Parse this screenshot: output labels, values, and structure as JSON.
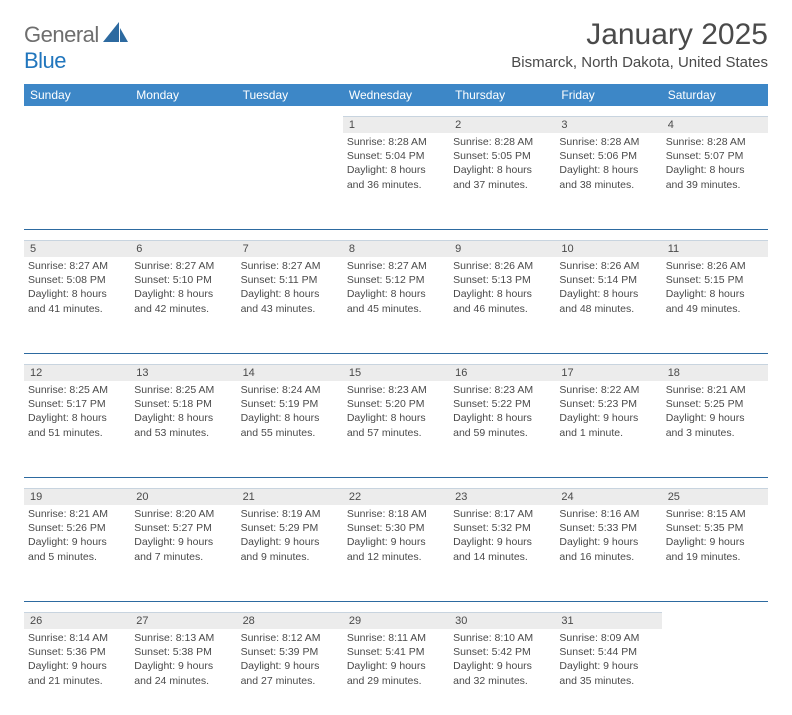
{
  "logo": {
    "text1": "General",
    "text2": "Blue"
  },
  "title": "January 2025",
  "location": "Bismarck, North Dakota, United States",
  "colors": {
    "header_bg": "#3d87c7",
    "header_text": "#ffffff",
    "daynum_bg": "#ececec",
    "rule": "#2d6aa0",
    "body_text": "#4a4a4a",
    "logo_gray": "#6e6e6e",
    "logo_blue": "#2176bd"
  },
  "day_names": [
    "Sunday",
    "Monday",
    "Tuesday",
    "Wednesday",
    "Thursday",
    "Friday",
    "Saturday"
  ],
  "weeks": [
    [
      {
        "n": "",
        "sr": "",
        "ss": "",
        "dl": ""
      },
      {
        "n": "",
        "sr": "",
        "ss": "",
        "dl": ""
      },
      {
        "n": "",
        "sr": "",
        "ss": "",
        "dl": ""
      },
      {
        "n": "1",
        "sr": "Sunrise: 8:28 AM",
        "ss": "Sunset: 5:04 PM",
        "dl": "Daylight: 8 hours and 36 minutes."
      },
      {
        "n": "2",
        "sr": "Sunrise: 8:28 AM",
        "ss": "Sunset: 5:05 PM",
        "dl": "Daylight: 8 hours and 37 minutes."
      },
      {
        "n": "3",
        "sr": "Sunrise: 8:28 AM",
        "ss": "Sunset: 5:06 PM",
        "dl": "Daylight: 8 hours and 38 minutes."
      },
      {
        "n": "4",
        "sr": "Sunrise: 8:28 AM",
        "ss": "Sunset: 5:07 PM",
        "dl": "Daylight: 8 hours and 39 minutes."
      }
    ],
    [
      {
        "n": "5",
        "sr": "Sunrise: 8:27 AM",
        "ss": "Sunset: 5:08 PM",
        "dl": "Daylight: 8 hours and 41 minutes."
      },
      {
        "n": "6",
        "sr": "Sunrise: 8:27 AM",
        "ss": "Sunset: 5:10 PM",
        "dl": "Daylight: 8 hours and 42 minutes."
      },
      {
        "n": "7",
        "sr": "Sunrise: 8:27 AM",
        "ss": "Sunset: 5:11 PM",
        "dl": "Daylight: 8 hours and 43 minutes."
      },
      {
        "n": "8",
        "sr": "Sunrise: 8:27 AM",
        "ss": "Sunset: 5:12 PM",
        "dl": "Daylight: 8 hours and 45 minutes."
      },
      {
        "n": "9",
        "sr": "Sunrise: 8:26 AM",
        "ss": "Sunset: 5:13 PM",
        "dl": "Daylight: 8 hours and 46 minutes."
      },
      {
        "n": "10",
        "sr": "Sunrise: 8:26 AM",
        "ss": "Sunset: 5:14 PM",
        "dl": "Daylight: 8 hours and 48 minutes."
      },
      {
        "n": "11",
        "sr": "Sunrise: 8:26 AM",
        "ss": "Sunset: 5:15 PM",
        "dl": "Daylight: 8 hours and 49 minutes."
      }
    ],
    [
      {
        "n": "12",
        "sr": "Sunrise: 8:25 AM",
        "ss": "Sunset: 5:17 PM",
        "dl": "Daylight: 8 hours and 51 minutes."
      },
      {
        "n": "13",
        "sr": "Sunrise: 8:25 AM",
        "ss": "Sunset: 5:18 PM",
        "dl": "Daylight: 8 hours and 53 minutes."
      },
      {
        "n": "14",
        "sr": "Sunrise: 8:24 AM",
        "ss": "Sunset: 5:19 PM",
        "dl": "Daylight: 8 hours and 55 minutes."
      },
      {
        "n": "15",
        "sr": "Sunrise: 8:23 AM",
        "ss": "Sunset: 5:20 PM",
        "dl": "Daylight: 8 hours and 57 minutes."
      },
      {
        "n": "16",
        "sr": "Sunrise: 8:23 AM",
        "ss": "Sunset: 5:22 PM",
        "dl": "Daylight: 8 hours and 59 minutes."
      },
      {
        "n": "17",
        "sr": "Sunrise: 8:22 AM",
        "ss": "Sunset: 5:23 PM",
        "dl": "Daylight: 9 hours and 1 minute."
      },
      {
        "n": "18",
        "sr": "Sunrise: 8:21 AM",
        "ss": "Sunset: 5:25 PM",
        "dl": "Daylight: 9 hours and 3 minutes."
      }
    ],
    [
      {
        "n": "19",
        "sr": "Sunrise: 8:21 AM",
        "ss": "Sunset: 5:26 PM",
        "dl": "Daylight: 9 hours and 5 minutes."
      },
      {
        "n": "20",
        "sr": "Sunrise: 8:20 AM",
        "ss": "Sunset: 5:27 PM",
        "dl": "Daylight: 9 hours and 7 minutes."
      },
      {
        "n": "21",
        "sr": "Sunrise: 8:19 AM",
        "ss": "Sunset: 5:29 PM",
        "dl": "Daylight: 9 hours and 9 minutes."
      },
      {
        "n": "22",
        "sr": "Sunrise: 8:18 AM",
        "ss": "Sunset: 5:30 PM",
        "dl": "Daylight: 9 hours and 12 minutes."
      },
      {
        "n": "23",
        "sr": "Sunrise: 8:17 AM",
        "ss": "Sunset: 5:32 PM",
        "dl": "Daylight: 9 hours and 14 minutes."
      },
      {
        "n": "24",
        "sr": "Sunrise: 8:16 AM",
        "ss": "Sunset: 5:33 PM",
        "dl": "Daylight: 9 hours and 16 minutes."
      },
      {
        "n": "25",
        "sr": "Sunrise: 8:15 AM",
        "ss": "Sunset: 5:35 PM",
        "dl": "Daylight: 9 hours and 19 minutes."
      }
    ],
    [
      {
        "n": "26",
        "sr": "Sunrise: 8:14 AM",
        "ss": "Sunset: 5:36 PM",
        "dl": "Daylight: 9 hours and 21 minutes."
      },
      {
        "n": "27",
        "sr": "Sunrise: 8:13 AM",
        "ss": "Sunset: 5:38 PM",
        "dl": "Daylight: 9 hours and 24 minutes."
      },
      {
        "n": "28",
        "sr": "Sunrise: 8:12 AM",
        "ss": "Sunset: 5:39 PM",
        "dl": "Daylight: 9 hours and 27 minutes."
      },
      {
        "n": "29",
        "sr": "Sunrise: 8:11 AM",
        "ss": "Sunset: 5:41 PM",
        "dl": "Daylight: 9 hours and 29 minutes."
      },
      {
        "n": "30",
        "sr": "Sunrise: 8:10 AM",
        "ss": "Sunset: 5:42 PM",
        "dl": "Daylight: 9 hours and 32 minutes."
      },
      {
        "n": "31",
        "sr": "Sunrise: 8:09 AM",
        "ss": "Sunset: 5:44 PM",
        "dl": "Daylight: 9 hours and 35 minutes."
      },
      {
        "n": "",
        "sr": "",
        "ss": "",
        "dl": ""
      }
    ]
  ]
}
